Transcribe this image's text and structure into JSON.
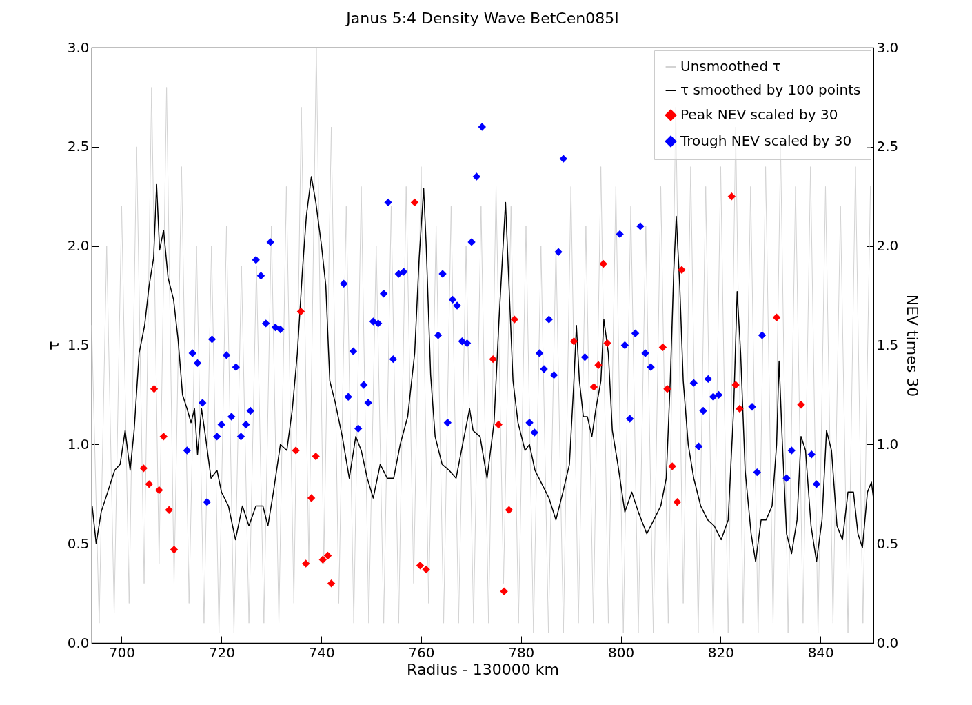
{
  "chart_data": {
    "type": "line",
    "title": "Janus 5:4 Density Wave BetCen085I",
    "xlabel": "Radius - 130000 km",
    "ylabel": "τ",
    "y2label": "NEV times 30",
    "xlim": [
      694,
      850.6
    ],
    "xticks": [
      700,
      720,
      740,
      760,
      780,
      800,
      820,
      840
    ],
    "ylim": [
      0,
      3
    ],
    "yticks": [
      {
        "value": 0,
        "label": "0.0"
      },
      0.5,
      {
        "value": 1,
        "label": "1.0"
      },
      1.5,
      {
        "value": 2,
        "label": "2.0"
      },
      2.5,
      {
        "value": 3,
        "label": "3.0"
      }
    ],
    "y2lim": [
      0,
      3
    ],
    "y2ticks": [
      {
        "value": 0,
        "label": "0.0"
      },
      0.5,
      {
        "value": 1,
        "label": "1.0"
      },
      1.5,
      {
        "value": 2,
        "label": "2.0"
      },
      2.5,
      {
        "value": 3,
        "label": "3.0"
      }
    ],
    "grid": false,
    "legend": "top right",
    "series": [
      {
        "name": "Unsmoothed τ",
        "color": "#d3d3d3",
        "x": [
          694.0,
          695.5,
          697.0,
          698.5,
          700.0,
          701.5,
          703.0,
          704.5,
          706.0,
          707.5,
          709.0,
          710.5,
          712.0,
          713.5,
          715.0,
          716.5,
          718.0,
          719.5,
          721.0,
          722.5,
          724.0,
          725.5,
          727.0,
          728.5,
          730.0,
          731.5,
          733.0,
          734.5,
          736.0,
          737.5,
          739.0,
          740.5,
          742.0,
          743.5,
          745.0,
          746.5,
          748.0,
          749.5,
          751.0,
          752.5,
          754.0,
          755.5,
          757.0,
          758.5,
          760.0,
          761.5,
          763.0,
          764.5,
          766.0,
          767.5,
          769.0,
          770.5,
          772.0,
          773.5,
          775.0,
          776.5,
          778.0,
          779.5,
          781.0,
          782.5,
          784.0,
          785.5,
          787.0,
          788.5,
          790.0,
          791.5,
          793.0,
          794.5,
          796.0,
          797.5,
          799.0,
          800.5,
          802.0,
          803.5,
          805.0,
          806.5,
          808.0,
          809.5,
          811.0,
          812.5,
          814.0,
          815.5,
          817.0,
          818.5,
          820.0,
          821.5,
          823.0,
          824.5,
          826.0,
          827.5,
          829.0,
          830.5,
          832.0,
          833.5,
          835.0,
          836.5,
          838.0,
          839.5,
          841.0,
          842.5,
          844.0,
          845.5,
          847.0,
          848.5,
          850.0
        ],
        "values": [
          1.6,
          0.1,
          2.0,
          0.15,
          2.2,
          0.2,
          2.5,
          0.3,
          2.8,
          0.4,
          2.8,
          0.3,
          2.4,
          0.2,
          2.0,
          0.1,
          2.0,
          0.05,
          2.1,
          0.05,
          1.9,
          0.1,
          1.9,
          0.1,
          2.1,
          0.1,
          2.3,
          0.2,
          2.7,
          0.4,
          3.0,
          0.4,
          2.6,
          0.2,
          2.2,
          0.1,
          2.3,
          0.1,
          2.0,
          0.1,
          2.2,
          0.1,
          2.3,
          0.3,
          2.4,
          0.2,
          2.1,
          0.1,
          2.2,
          0.1,
          2.0,
          0.1,
          2.2,
          0.1,
          2.3,
          0.3,
          2.2,
          0.1,
          2.1,
          0.05,
          2.0,
          0.05,
          2.0,
          0.05,
          2.3,
          0.1,
          2.1,
          0.1,
          2.4,
          0.1,
          2.3,
          0.05,
          2.2,
          0.05,
          2.1,
          0.05,
          2.3,
          0.1,
          2.7,
          0.2,
          2.4,
          0.05,
          2.3,
          0.05,
          2.4,
          0.05,
          2.6,
          0.1,
          2.3,
          0.05,
          2.4,
          0.1,
          2.5,
          0.05,
          2.3,
          0.1,
          2.4,
          0.05,
          2.3,
          0.1,
          2.2,
          0.05,
          2.4,
          0.1,
          2.3
        ]
      },
      {
        "name": "τ smoothed by 100 points",
        "color": "#000000",
        "x": [
          694.1,
          694.9,
          695.9,
          697.2,
          698.6,
          699.7,
          700.7,
          701.7,
          702.5,
          703.5,
          704.6,
          705.5,
          706.4,
          707.0,
          707.6,
          708.4,
          709.3,
          710.4,
          711.3,
          712.2,
          713.1,
          713.9,
          714.6,
          715.2,
          716.0,
          716.8,
          717.9,
          719.1,
          720.0,
          721.4,
          722.8,
          724.2,
          725.5,
          726.9,
          728.3,
          729.3,
          730.4,
          731.8,
          733.1,
          734.2,
          735.2,
          736.2,
          737.0,
          738.0,
          738.9,
          740.0,
          740.9,
          741.7,
          742.8,
          744.2,
          745.6,
          746.9,
          748.0,
          749.2,
          750.4,
          751.8,
          753.2,
          754.5,
          755.8,
          757.3,
          758.7,
          759.6,
          760.5,
          761.0,
          761.9,
          762.8,
          764.2,
          765.6,
          767.0,
          768.3,
          769.7,
          770.4,
          771.8,
          773.2,
          774.6,
          775.6,
          776.9,
          777.6,
          778.4,
          779.4,
          780.8,
          781.7,
          782.8,
          784.2,
          785.6,
          787.0,
          788.4,
          789.7,
          790.6,
          791.1,
          791.7,
          792.5,
          793.3,
          794.2,
          795.0,
          796.0,
          796.6,
          797.5,
          798.3,
          799.4,
          800.8,
          802.2,
          803.5,
          805.2,
          806.6,
          808.0,
          809.1,
          809.9,
          810.6,
          811.1,
          811.8,
          812.5,
          813.5,
          814.6,
          816.0,
          817.4,
          818.7,
          820.1,
          821.5,
          822.6,
          823.3,
          824.0,
          824.9,
          826.1,
          827.0,
          828.1,
          829.1,
          830.3,
          831.2,
          831.7,
          832.3,
          833.2,
          834.2,
          835.3,
          836.1,
          837.0,
          838.1,
          839.2,
          840.3,
          841.2,
          842.2,
          843.3,
          844.4,
          845.5,
          846.6,
          847.5,
          848.4,
          849.4,
          850.2,
          850.6
        ],
        "values": [
          0.69,
          0.5,
          0.66,
          0.76,
          0.87,
          0.9,
          1.07,
          0.87,
          1.07,
          1.46,
          1.6,
          1.8,
          1.94,
          2.31,
          1.98,
          2.08,
          1.84,
          1.73,
          1.53,
          1.25,
          1.18,
          1.11,
          1.18,
          0.95,
          1.18,
          1.04,
          0.83,
          0.87,
          0.76,
          0.69,
          0.52,
          0.69,
          0.59,
          0.69,
          0.69,
          0.59,
          0.76,
          1.0,
          0.97,
          1.18,
          1.46,
          1.87,
          2.15,
          2.35,
          2.22,
          2.01,
          1.8,
          1.32,
          1.21,
          1.04,
          0.83,
          1.04,
          0.97,
          0.83,
          0.73,
          0.9,
          0.83,
          0.83,
          1.0,
          1.14,
          1.46,
          1.94,
          2.29,
          2.01,
          1.35,
          1.04,
          0.9,
          0.87,
          0.83,
          1.0,
          1.18,
          1.07,
          1.04,
          0.83,
          1.11,
          1.63,
          2.22,
          1.8,
          1.32,
          1.11,
          0.97,
          1.0,
          0.87,
          0.8,
          0.73,
          0.62,
          0.76,
          0.9,
          1.32,
          1.6,
          1.32,
          1.14,
          1.14,
          1.04,
          1.18,
          1.32,
          1.63,
          1.46,
          1.07,
          0.9,
          0.66,
          0.76,
          0.66,
          0.55,
          0.62,
          0.69,
          0.83,
          1.32,
          1.87,
          2.15,
          1.8,
          1.32,
          1.0,
          0.83,
          0.69,
          0.62,
          0.59,
          0.52,
          0.62,
          1.18,
          1.77,
          1.46,
          0.87,
          0.55,
          0.41,
          0.62,
          0.62,
          0.69,
          1.0,
          1.42,
          1.04,
          0.55,
          0.45,
          0.62,
          1.04,
          0.97,
          0.59,
          0.41,
          0.62,
          1.07,
          0.97,
          0.59,
          0.52,
          0.76,
          0.76,
          0.55,
          0.48,
          0.76,
          0.81,
          0.73
        ]
      },
      {
        "name": "Peak NEV scaled by 30",
        "type": "scatter",
        "marker": "diamond",
        "axis": "y2",
        "color": "#ff0000",
        "x": [
          704.4,
          705.5,
          706.5,
          707.5,
          708.4,
          709.5,
          710.5,
          734.9,
          735.9,
          736.9,
          738.0,
          738.9,
          740.3,
          741.3,
          742.0,
          758.7,
          759.8,
          761.0,
          774.4,
          775.5,
          776.6,
          777.6,
          778.7,
          790.6,
          794.6,
          795.5,
          796.5,
          797.3,
          808.4,
          809.3,
          810.3,
          811.3,
          812.2,
          822.2,
          823.0,
          823.8,
          831.2,
          836.1
        ],
        "values": [
          0.88,
          0.8,
          1.28,
          0.77,
          1.04,
          0.67,
          0.47,
          0.97,
          1.67,
          0.4,
          0.73,
          0.94,
          0.42,
          0.44,
          0.3,
          2.22,
          0.39,
          0.37,
          1.43,
          1.1,
          0.26,
          0.67,
          1.63,
          1.52,
          1.29,
          1.4,
          1.91,
          1.51,
          1.49,
          1.28,
          0.89,
          0.71,
          1.88,
          2.25,
          1.3,
          1.18,
          1.64,
          1.2
        ]
      },
      {
        "name": "Trough NEV scaled by 30",
        "type": "scatter",
        "marker": "diamond",
        "axis": "y2",
        "color": "#0000ff",
        "x": [
          713.1,
          714.2,
          715.2,
          716.2,
          717.1,
          718.1,
          719.1,
          720.0,
          721.0,
          722.0,
          722.9,
          723.9,
          724.9,
          725.8,
          726.9,
          727.9,
          728.9,
          729.8,
          730.8,
          731.8,
          744.5,
          745.4,
          746.4,
          747.4,
          748.5,
          749.4,
          750.4,
          751.4,
          752.5,
          753.4,
          754.4,
          755.5,
          756.5,
          763.4,
          764.3,
          765.3,
          766.3,
          767.2,
          768.2,
          769.2,
          770.1,
          771.1,
          772.2,
          781.7,
          782.7,
          783.7,
          784.6,
          785.6,
          786.6,
          787.5,
          788.5,
          792.8,
          799.8,
          800.8,
          801.8,
          802.9,
          803.9,
          804.9,
          806.0,
          814.6,
          815.6,
          816.5,
          817.5,
          818.5,
          819.6,
          826.3,
          827.3,
          828.3,
          833.2,
          834.2,
          838.2,
          839.2
        ],
        "values": [
          0.97,
          1.46,
          1.41,
          1.21,
          0.71,
          1.53,
          1.04,
          1.1,
          1.45,
          1.14,
          1.39,
          1.04,
          1.1,
          1.17,
          1.93,
          1.85,
          1.61,
          2.02,
          1.59,
          1.58,
          1.81,
          1.24,
          1.47,
          1.08,
          1.3,
          1.21,
          1.62,
          1.61,
          1.76,
          2.22,
          1.43,
          1.86,
          1.87,
          1.55,
          1.86,
          1.11,
          1.73,
          1.7,
          1.52,
          1.51,
          2.02,
          2.35,
          2.6,
          1.11,
          1.06,
          1.46,
          1.38,
          1.63,
          1.35,
          1.97,
          2.44,
          1.44,
          2.06,
          1.5,
          1.13,
          1.56,
          2.1,
          1.46,
          1.39,
          1.31,
          0.99,
          1.17,
          1.33,
          1.24,
          1.25,
          1.19,
          0.86,
          1.55,
          0.83,
          0.97,
          0.95,
          0.8
        ]
      }
    ]
  }
}
